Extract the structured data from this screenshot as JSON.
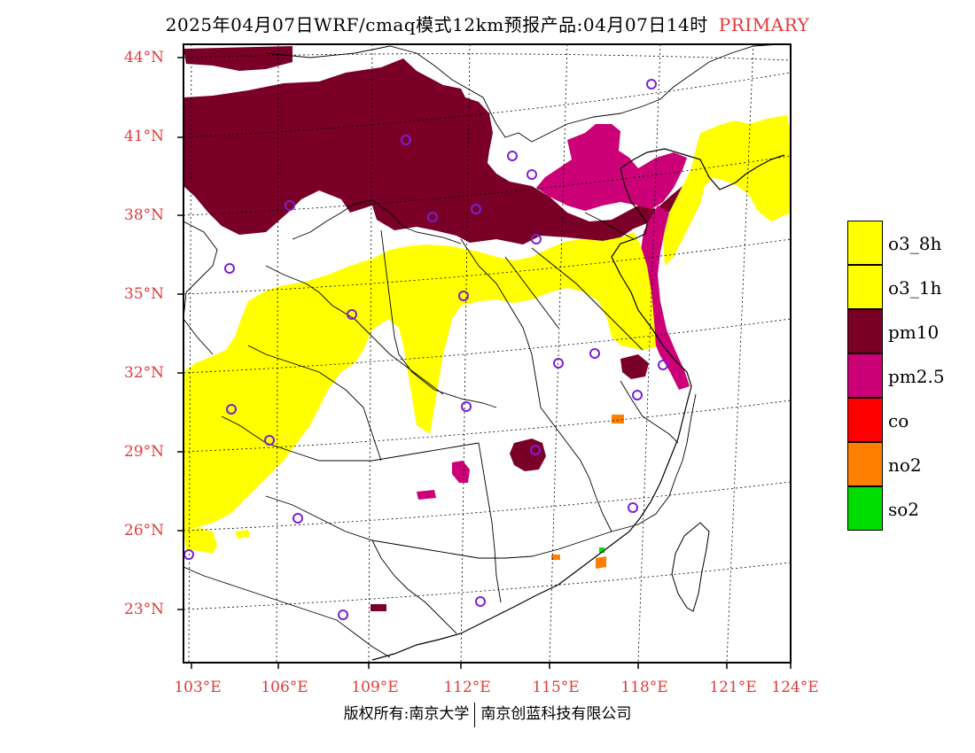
{
  "title": {
    "text": "2025年04月07日WRF/cmaq模式12km预报产品:04月07日14时",
    "tag": "PRIMARY"
  },
  "map": {
    "lat_labels": [
      "44°N",
      "41°N",
      "38°N",
      "35°N",
      "32°N",
      "29°N",
      "26°N",
      "23°N"
    ],
    "lon_labels": [
      "103°E",
      "106°E",
      "109°E",
      "112°E",
      "115°E",
      "118°E",
      "121°E",
      "124°E"
    ],
    "colors": {
      "o3_8h": "#ffff00",
      "o3_1h": "#ffff00",
      "pm10": "#7a0028",
      "pm25": "#cc0077",
      "co": "#ff0000",
      "no2": "#ff8000",
      "so2": "#00dd00",
      "station": "#7b1fd6",
      "lat_lon_label": "#e03a3a"
    }
  },
  "legend": [
    {
      "label": "o3_8h",
      "color": "#ffff00"
    },
    {
      "label": "o3_1h",
      "color": "#ffff00"
    },
    {
      "label": "pm10",
      "color": "#7a0028"
    },
    {
      "label": "pm2.5",
      "color": "#cc0077"
    },
    {
      "label": "co",
      "color": "#ff0000"
    },
    {
      "label": "no2",
      "color": "#ff8000"
    },
    {
      "label": "so2",
      "color": "#00dd00"
    }
  ],
  "footer": {
    "left": "版权所有:南京大学",
    "right": "南京创蓝科技有限公司"
  }
}
